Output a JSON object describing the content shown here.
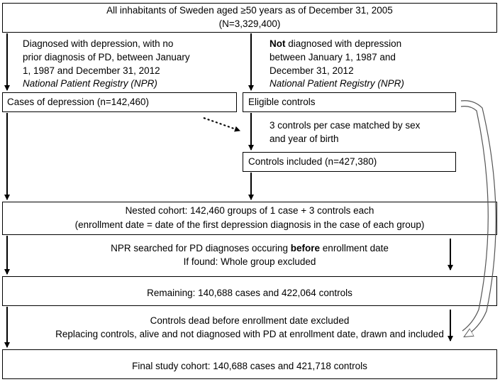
{
  "top_box": {
    "line1": "All inhabitants of Sweden aged ≥50 years as of December 31, 2005",
    "line2": "(N=3,329,400)"
  },
  "left_criteria": {
    "line1": "Diagnosed with depression, with no",
    "line2": "prior diagnosis of PD, between January",
    "line3": "1, 1987 and December 31, 2012",
    "source": "National Patient Registry (NPR)"
  },
  "right_criteria": {
    "bold": "Not",
    "line1_rest": " diagnosed with depression",
    "line2": "between January 1, 1987 and",
    "line3": "December 31, 2012",
    "source": "National Patient Registry (NPR)"
  },
  "cases_box": {
    "text": "Cases of depression (n=142,460)"
  },
  "controls_box": {
    "text": "Eligible controls"
  },
  "matching": {
    "line1": "3 controls per case matched by sex",
    "line2": "and year of birth"
  },
  "included_box": {
    "text": "Controls included (n=427,380)"
  },
  "nested_box": {
    "line1": "Nested cohort: 142,460 groups of 1 case + 3 controls each",
    "line2": "(enrollment date = date of the first depression diagnosis in the case of each group)"
  },
  "step1": {
    "pre": "NPR searched for PD diagnoses occuring ",
    "bold": "before",
    "post": " enrollment date",
    "line2": "If found: Whole group excluded"
  },
  "remaining_box": {
    "text": "Remaining: 140,688 cases and 422,064 controls"
  },
  "step2": {
    "line1": "Controls dead before enrollment date excluded",
    "line2": "Replacing controls, alive and not diagnosed with PD at enrollment date, drawn and included"
  },
  "final_box": {
    "text": "Final study cohort: 140,688 cases and 421,718 controls"
  }
}
